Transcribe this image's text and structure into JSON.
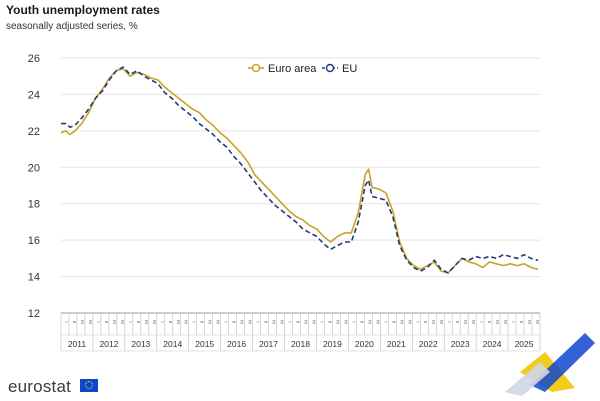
{
  "header": {
    "title": "Youth unemployment rates",
    "subtitle": "seasonally adjusted series, %"
  },
  "brand": {
    "name": "eurostat"
  },
  "chart_data": {
    "type": "line",
    "title": "Youth unemployment rates",
    "subtitle": "seasonally adjusted series, %",
    "ylim": [
      12,
      26
    ],
    "yticks": [
      12,
      14,
      16,
      18,
      20,
      22,
      24,
      26
    ],
    "grid": true,
    "legend_position": "top-center",
    "quarter_labels": [
      "I",
      "II",
      "III",
      "IV"
    ],
    "years": [
      "2011",
      "2012",
      "2013",
      "2014",
      "2015",
      "2016",
      "2017",
      "2018",
      "2019",
      "2020",
      "2021",
      "2022",
      "2023",
      "2024",
      "2025"
    ],
    "x_unit": "quarter index from 2011 Q1 (0) to 2025 Q4 (60)",
    "colors": {
      "euro_area": "#c9a227",
      "eu": "#1f3b7a",
      "grid": "#e3e3e3"
    },
    "series": [
      {
        "name": "Euro area",
        "style": "solid",
        "points": [
          [
            0,
            21.9
          ],
          [
            0.7,
            22.0
          ],
          [
            1.3,
            21.8
          ],
          [
            2,
            22.0
          ],
          [
            3,
            22.4
          ],
          [
            4,
            23.0
          ],
          [
            5,
            23.8
          ],
          [
            6,
            24.3
          ],
          [
            7,
            24.9
          ],
          [
            8,
            25.3
          ],
          [
            9,
            25.4
          ],
          [
            10,
            25.0
          ],
          [
            11,
            25.2
          ],
          [
            12,
            25.1
          ],
          [
            13,
            24.9
          ],
          [
            14,
            24.8
          ],
          [
            15,
            24.4
          ],
          [
            16,
            24.1
          ],
          [
            17,
            23.8
          ],
          [
            18,
            23.5
          ],
          [
            19,
            23.2
          ],
          [
            20,
            23.0
          ],
          [
            21,
            22.6
          ],
          [
            22,
            22.3
          ],
          [
            23,
            21.9
          ],
          [
            24,
            21.6
          ],
          [
            25,
            21.2
          ],
          [
            26,
            20.8
          ],
          [
            27,
            20.3
          ],
          [
            28,
            19.6
          ],
          [
            29,
            19.2
          ],
          [
            30,
            18.8
          ],
          [
            31,
            18.4
          ],
          [
            32,
            18.0
          ],
          [
            33,
            17.6
          ],
          [
            34,
            17.3
          ],
          [
            35,
            17.1
          ],
          [
            36,
            16.8
          ],
          [
            37,
            16.6
          ],
          [
            38,
            16.2
          ],
          [
            39,
            15.9
          ],
          [
            40,
            16.2
          ],
          [
            41,
            16.4
          ],
          [
            42,
            16.4
          ],
          [
            43,
            17.5
          ],
          [
            44,
            19.6
          ],
          [
            44.5,
            19.9
          ],
          [
            45,
            18.9
          ],
          [
            46,
            18.8
          ],
          [
            47,
            18.6
          ],
          [
            48,
            17.6
          ],
          [
            49,
            15.9
          ],
          [
            50,
            15.0
          ],
          [
            51,
            14.6
          ],
          [
            52,
            14.4
          ],
          [
            53,
            14.6
          ],
          [
            54,
            14.8
          ],
          [
            55,
            14.3
          ],
          [
            56,
            14.2
          ],
          [
            57,
            14.6
          ],
          [
            58,
            15.0
          ],
          [
            59,
            14.8
          ],
          [
            60,
            14.7
          ],
          [
            61,
            14.5
          ],
          [
            62,
            14.8
          ],
          [
            63,
            14.7
          ],
          [
            64,
            14.6
          ],
          [
            65,
            14.7
          ],
          [
            66,
            14.6
          ],
          [
            67,
            14.7
          ],
          [
            68,
            14.5
          ],
          [
            69,
            14.4
          ]
        ]
      },
      {
        "name": "EU",
        "style": "dashed",
        "points": [
          [
            0,
            22.4
          ],
          [
            0.7,
            22.4
          ],
          [
            1.3,
            22.2
          ],
          [
            2,
            22.3
          ],
          [
            3,
            22.7
          ],
          [
            4,
            23.2
          ],
          [
            5,
            23.8
          ],
          [
            6,
            24.2
          ],
          [
            7,
            24.8
          ],
          [
            8,
            25.3
          ],
          [
            9,
            25.5
          ],
          [
            10,
            25.1
          ],
          [
            11,
            25.3
          ],
          [
            12,
            25.0
          ],
          [
            13,
            24.8
          ],
          [
            14,
            24.6
          ],
          [
            15,
            24.1
          ],
          [
            16,
            23.8
          ],
          [
            17,
            23.4
          ],
          [
            18,
            23.1
          ],
          [
            19,
            22.8
          ],
          [
            20,
            22.4
          ],
          [
            21,
            22.1
          ],
          [
            22,
            21.8
          ],
          [
            23,
            21.4
          ],
          [
            24,
            21.1
          ],
          [
            25,
            20.6
          ],
          [
            26,
            20.2
          ],
          [
            27,
            19.7
          ],
          [
            28,
            19.2
          ],
          [
            29,
            18.7
          ],
          [
            30,
            18.3
          ],
          [
            31,
            17.9
          ],
          [
            32,
            17.6
          ],
          [
            33,
            17.3
          ],
          [
            34,
            17.0
          ],
          [
            35,
            16.6
          ],
          [
            36,
            16.4
          ],
          [
            37,
            16.2
          ],
          [
            38,
            15.8
          ],
          [
            39,
            15.5
          ],
          [
            40,
            15.7
          ],
          [
            41,
            15.9
          ],
          [
            42,
            15.9
          ],
          [
            43,
            17.0
          ],
          [
            44,
            19.0
          ],
          [
            44.5,
            19.3
          ],
          [
            45,
            18.4
          ],
          [
            46,
            18.3
          ],
          [
            47,
            18.2
          ],
          [
            48,
            17.3
          ],
          [
            49,
            15.7
          ],
          [
            50,
            14.9
          ],
          [
            51,
            14.5
          ],
          [
            52,
            14.3
          ],
          [
            53,
            14.5
          ],
          [
            54,
            14.9
          ],
          [
            55,
            14.4
          ],
          [
            56,
            14.2
          ],
          [
            57,
            14.6
          ],
          [
            58,
            15.0
          ],
          [
            59,
            14.9
          ],
          [
            60,
            15.1
          ],
          [
            61,
            15.0
          ],
          [
            62,
            15.1
          ],
          [
            63,
            15.0
          ],
          [
            64,
            15.2
          ],
          [
            65,
            15.1
          ],
          [
            66,
            15.0
          ],
          [
            67,
            15.2
          ],
          [
            68,
            15.0
          ],
          [
            69,
            14.9
          ]
        ]
      }
    ]
  }
}
